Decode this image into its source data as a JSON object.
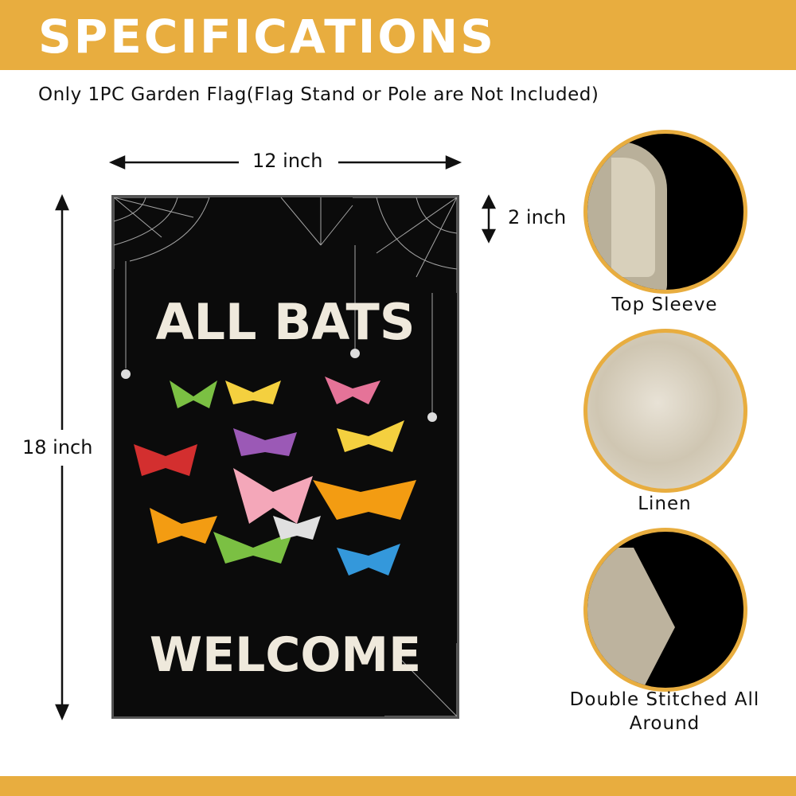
{
  "header": {
    "title": "SPECIFICATIONS",
    "subtitle": "Only 1PC Garden Flag(Flag Stand or Pole are Not Included)"
  },
  "dimensions": {
    "width": "12 inch",
    "height": "18 inch",
    "sleeve": "2 inch"
  },
  "flag": {
    "line1": "ALL BATS",
    "line2": "WELCOME"
  },
  "features": [
    {
      "label": "Top Sleeve"
    },
    {
      "label": "Linen"
    },
    {
      "label": "Double Stitched All Around"
    }
  ],
  "colors": {
    "accent": "#E8AD3F",
    "flag_bg": "#0b0b0b",
    "linen": "#cfc6b2"
  }
}
